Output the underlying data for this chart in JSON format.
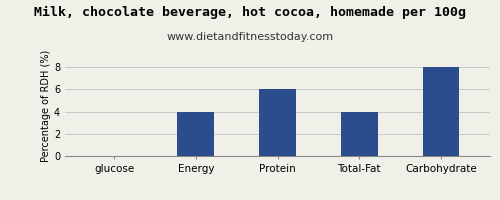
{
  "title": "Milk, chocolate beverage, hot cocoa, homemade per 100g",
  "subtitle": "www.dietandfitnesstoday.com",
  "categories": [
    "glucose",
    "Energy",
    "Protein",
    "Total-Fat",
    "Carbohydrate"
  ],
  "values": [
    0,
    4,
    6,
    4,
    8
  ],
  "bar_color": "#2b4d8c",
  "ylabel": "Percentage of RDH (%)",
  "ylim": [
    0,
    9
  ],
  "yticks": [
    0,
    2,
    4,
    6,
    8
  ],
  "title_fontsize": 9.5,
  "subtitle_fontsize": 8,
  "ylabel_fontsize": 7,
  "xlabel_fontsize": 7.5,
  "background_color": "#f0f0e8",
  "plot_bg_color": "#f0f0e8",
  "grid_color": "#c8c8c8",
  "border_color": "#888888"
}
